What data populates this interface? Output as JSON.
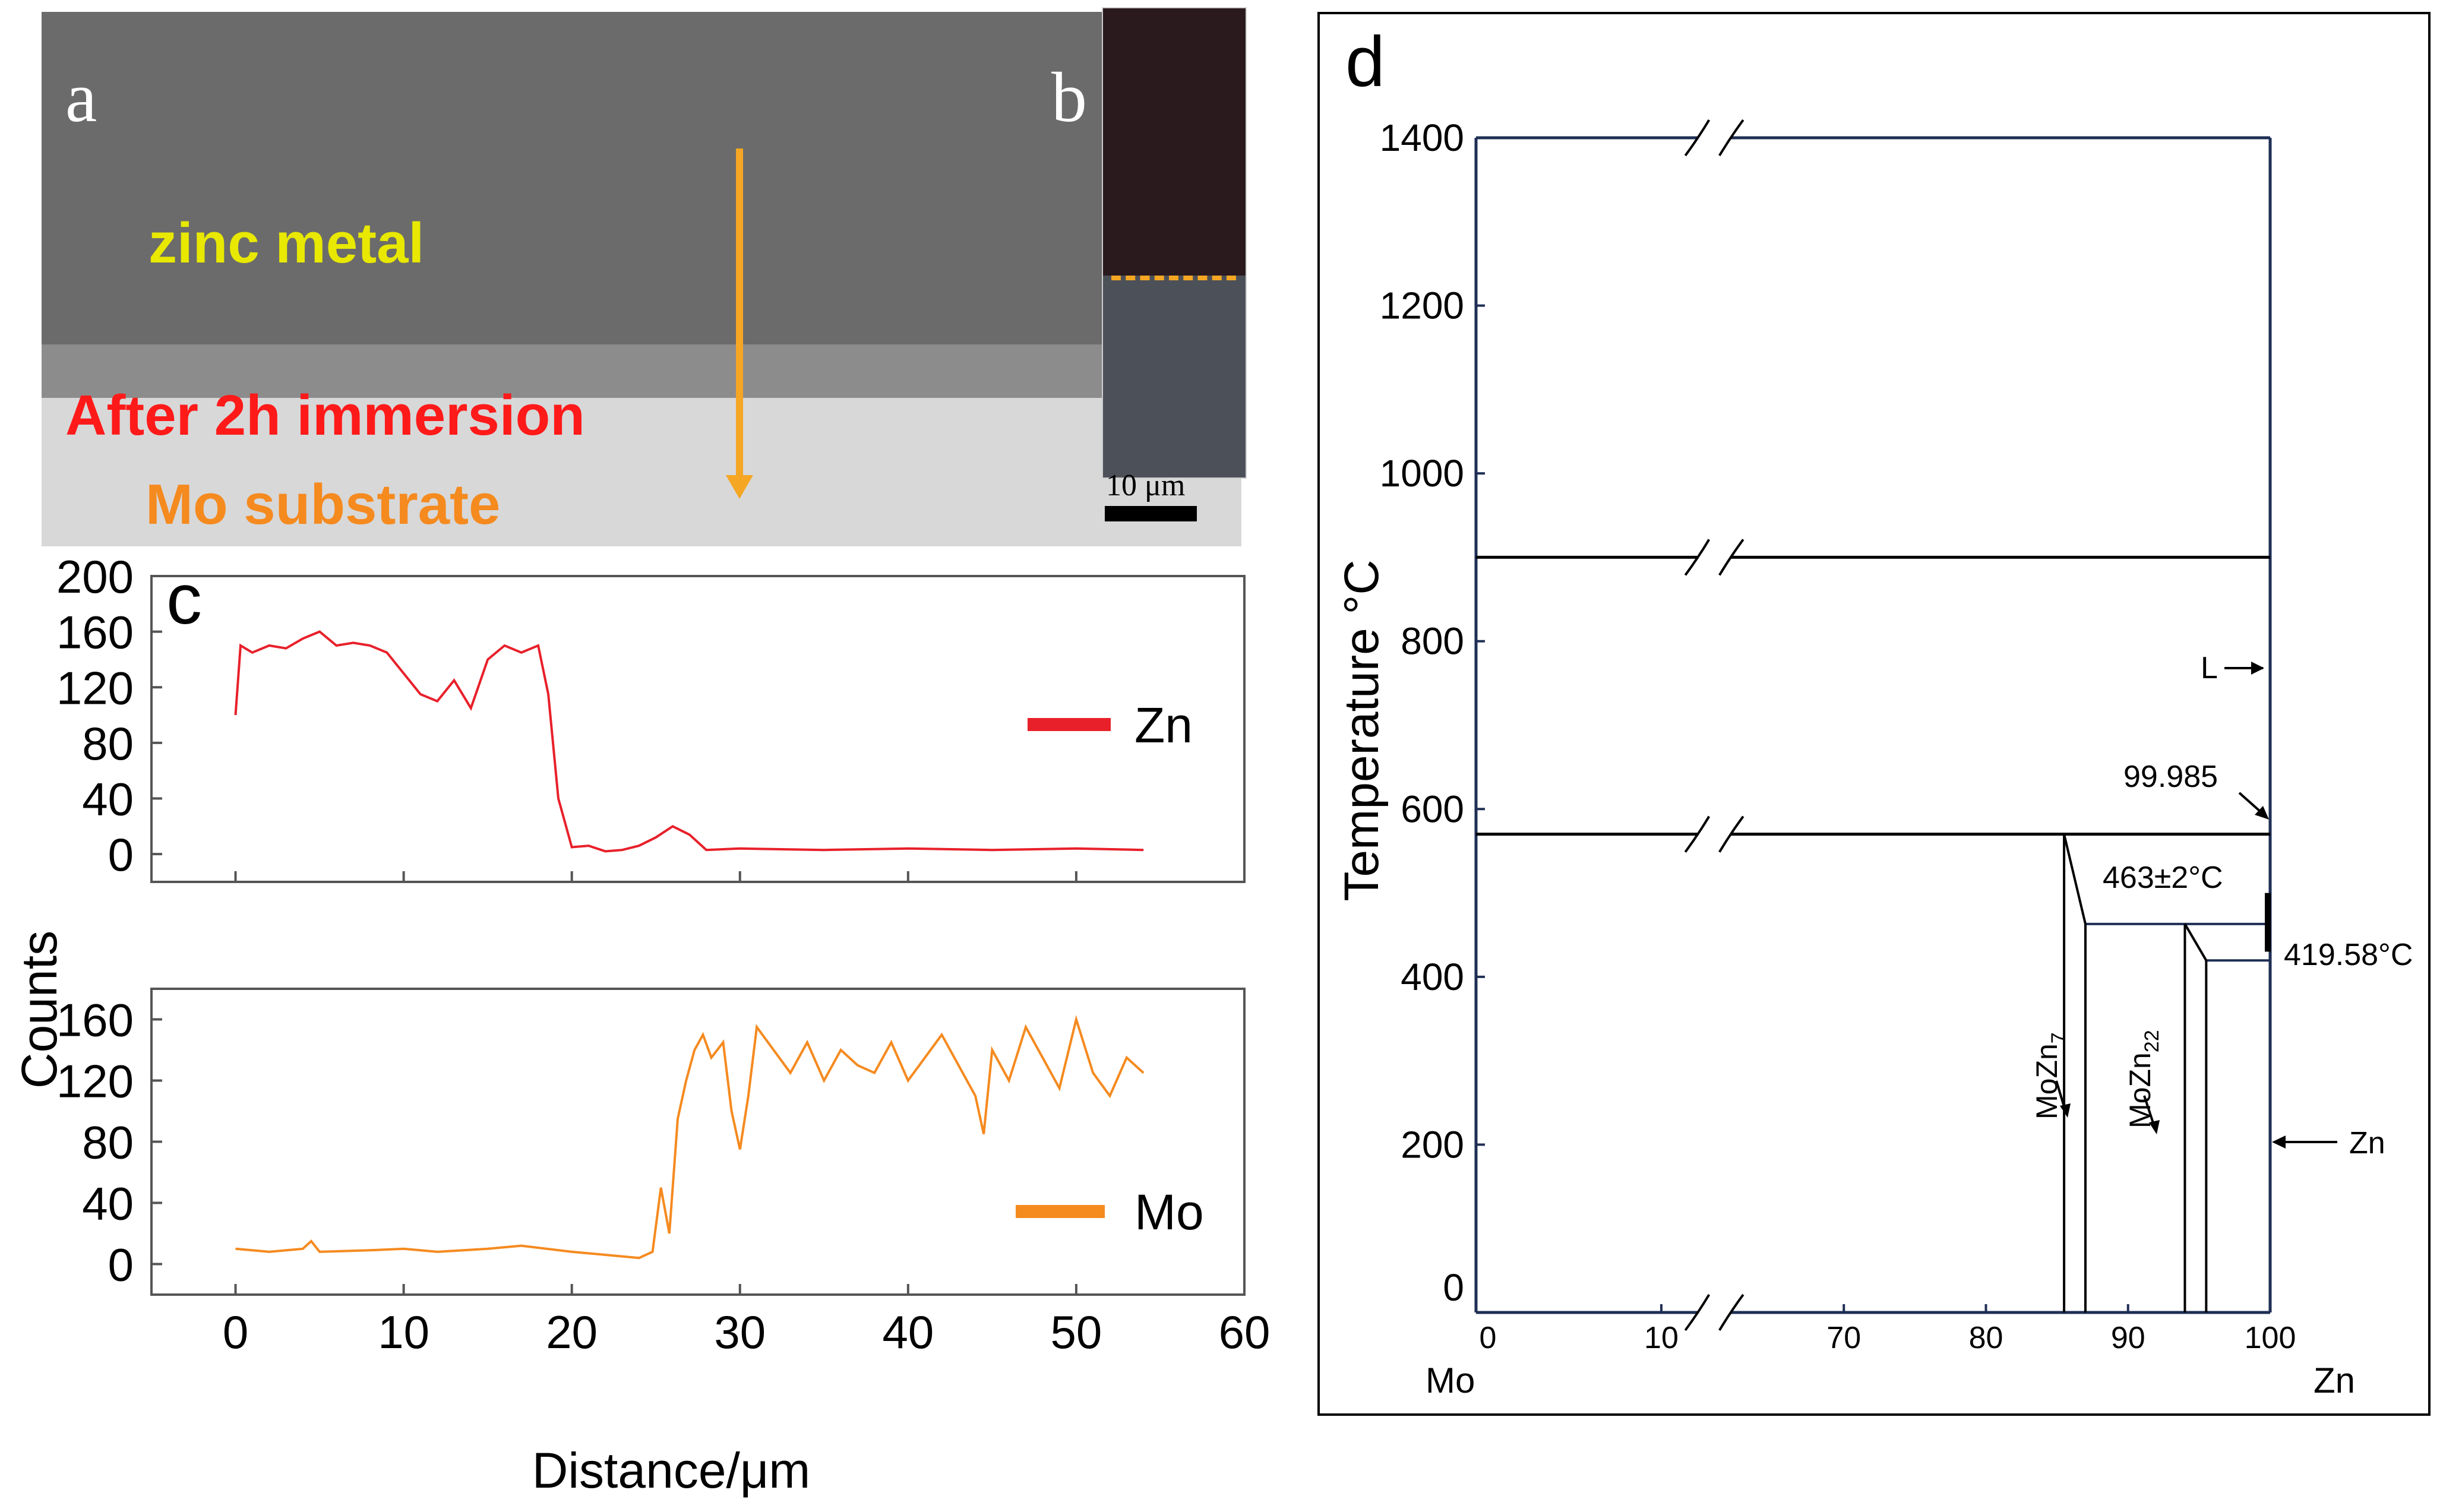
{
  "panel_a": {
    "letter": "a",
    "label_zinc": "zinc metal",
    "label_after": "After 2h immersion",
    "label_mo": "Mo substrate",
    "scale_bar": "10 μm",
    "colors": {
      "zinc_label": "#e8e800",
      "after_label": "#ff1a1a",
      "mo_label": "#f58a1f",
      "arrow": "#f5a623"
    }
  },
  "panel_b": {
    "letter": "b",
    "dash_color": "#f5a623"
  },
  "panel_c": {
    "letter": "c",
    "ylabel": "Counts",
    "xlabel": "Distance/μm"
  },
  "panel_d": {
    "letter": "d",
    "ylabel": "Temperature °C",
    "left_element": "Mo",
    "right_element": "Zn",
    "annotations": {
      "L": "L",
      "eutectic": "99.985",
      "peritectic": "463±2°C",
      "melting": "419.58°C",
      "mozn7_base": "MoZn",
      "mozn7_sub": "7",
      "mozn22_base": "MoZn",
      "mozn22_sub": "22",
      "zn": "Zn"
    }
  },
  "chart_data": [
    {
      "type": "line",
      "title": "",
      "xlabel": "",
      "ylabel": "Counts",
      "xlim": [
        -5,
        60
      ],
      "ylim": [
        -20,
        200
      ],
      "y_ticks": [
        0,
        40,
        80,
        120,
        160,
        200
      ],
      "series": [
        {
          "name": "Zn",
          "color": "#e8202a",
          "x": [
            0,
            0.3,
            1,
            2,
            3,
            4,
            5,
            6,
            7,
            8,
            9,
            10,
            11,
            12,
            13,
            14,
            15,
            16,
            17,
            18,
            18.6,
            19.2,
            20,
            21,
            22,
            23,
            24,
            25,
            26,
            27,
            28,
            30,
            35,
            40,
            45,
            50,
            54
          ],
          "values": [
            100,
            150,
            145,
            150,
            148,
            155,
            160,
            150,
            152,
            150,
            145,
            130,
            115,
            110,
            125,
            105,
            140,
            150,
            145,
            150,
            115,
            40,
            5,
            6,
            2,
            3,
            6,
            12,
            20,
            14,
            3,
            4,
            3,
            4,
            3,
            4,
            3
          ]
        }
      ]
    },
    {
      "type": "line",
      "title": "",
      "xlabel": "Distance/μm",
      "ylabel": "Counts",
      "xlim": [
        -5,
        60
      ],
      "ylim": [
        -20,
        180
      ],
      "x_ticks": [
        0,
        10,
        20,
        30,
        40,
        50,
        60
      ],
      "y_ticks": [
        0,
        40,
        80,
        120,
        160
      ],
      "series": [
        {
          "name": "Mo",
          "color": "#f58a1f",
          "x": [
            0,
            2,
            4,
            4.5,
            5,
            8,
            10,
            12,
            15,
            17,
            20,
            22,
            24,
            24.8,
            25.3,
            25.8,
            26.3,
            26.8,
            27.3,
            27.8,
            28.3,
            29,
            29.5,
            30,
            30.5,
            31,
            32,
            33,
            34,
            35,
            36,
            37,
            38,
            39,
            40,
            41,
            42,
            43,
            44,
            44.5,
            45,
            46,
            47,
            48,
            49,
            50,
            51,
            52,
            53,
            54
          ],
          "values": [
            10,
            8,
            10,
            15,
            8,
            9,
            10,
            8,
            10,
            12,
            8,
            6,
            4,
            8,
            50,
            20,
            95,
            120,
            140,
            150,
            135,
            145,
            100,
            75,
            110,
            155,
            140,
            125,
            145,
            120,
            140,
            130,
            125,
            145,
            120,
            135,
            150,
            130,
            110,
            85,
            140,
            120,
            155,
            135,
            115,
            160,
            125,
            110,
            135,
            125
          ]
        }
      ]
    },
    {
      "type": "line",
      "title": "",
      "xlabel": "",
      "ylabel": "Temperature °C",
      "ylim": [
        0,
        1400
      ],
      "y_ticks": [
        0,
        200,
        400,
        600,
        800,
        1000,
        1200,
        1400
      ],
      "x_ticks": [
        0,
        10,
        70,
        80,
        90,
        100
      ],
      "x_axis_break": [
        12,
        62
      ],
      "series": [
        {
          "name": "isotherm-900",
          "x": [
            0,
            100
          ],
          "values": [
            900,
            900
          ]
        },
        {
          "name": "isotherm-570",
          "x": [
            0,
            100
          ],
          "values": [
            570,
            570
          ]
        },
        {
          "name": "peritectic-463",
          "x": [
            87,
            100
          ],
          "values": [
            463,
            463
          ]
        },
        {
          "name": "isotherm-419",
          "x": [
            95.5,
            100
          ],
          "values": [
            419.58,
            419.58
          ]
        }
      ]
    }
  ]
}
